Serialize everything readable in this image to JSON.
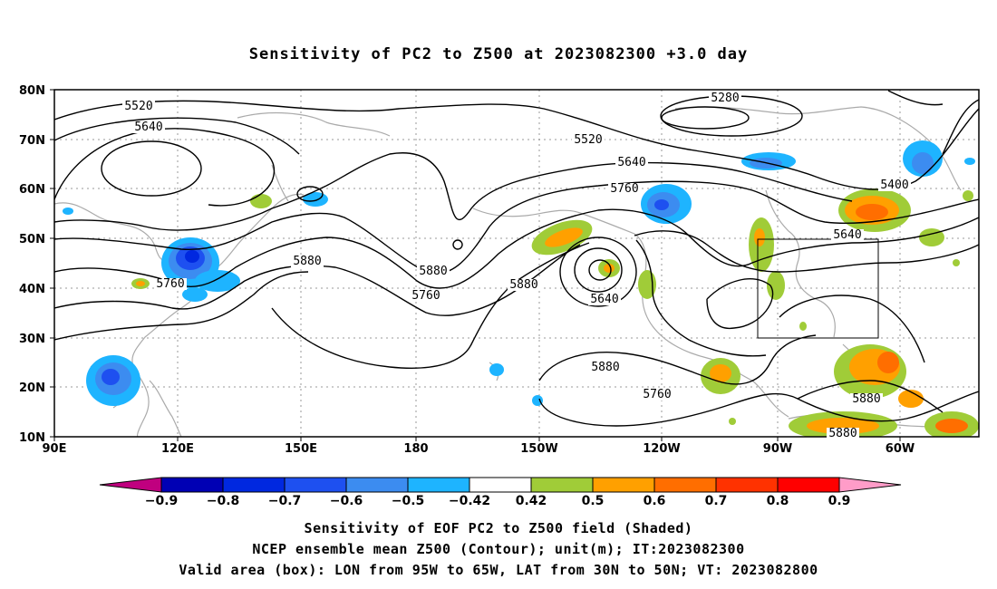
{
  "title": "Sensitivity of PC2 to Z500 at 2023082300 +3.0 day",
  "map": {
    "lon_labels": [
      "90E",
      "120E",
      "150E",
      "180",
      "150W",
      "120W",
      "90W",
      "60W"
    ],
    "lat_labels": [
      "80N",
      "70N",
      "60N",
      "50N",
      "40N",
      "30N",
      "20N",
      "10N"
    ],
    "contour_labels": [
      "5280",
      "5400",
      "5520",
      "5640",
      "5520",
      "5640",
      "5760",
      "5640",
      "5760",
      "5880",
      "5880",
      "5760",
      "5880",
      "5880",
      "5760",
      "5640",
      "5880",
      "5880"
    ]
  },
  "colorbar": {
    "labels": [
      "−0.9",
      "−0.8",
      "−0.7",
      "−0.6",
      "−0.5",
      "−0.42",
      "0.42",
      "0.5",
      "0.6",
      "0.7",
      "0.8",
      "0.9"
    ],
    "colors": [
      "#c0007f",
      "#0000b4",
      "#0028e0",
      "#1e50f0",
      "#3c8cf0",
      "#1eb4ff",
      "#ffffff",
      "#a0cc38",
      "#ffa000",
      "#ff6e00",
      "#ff3200",
      "#ff0000",
      "#ff9cc8"
    ]
  },
  "captions": [
    "Sensitivity of EOF PC2 to Z500 field (Shaded)",
    "NCEP ensemble mean Z500 (Contour); unit(m); IT:2023082300",
    "Valid area (box): LON from 95W to 65W, LAT from 30N to 50N; VT: 2023082800"
  ]
}
